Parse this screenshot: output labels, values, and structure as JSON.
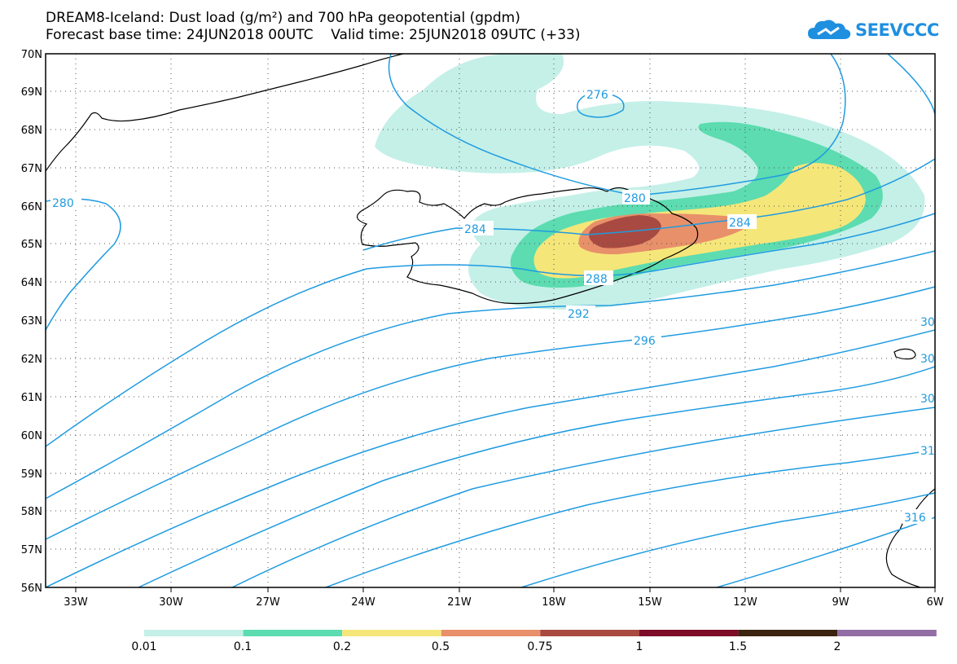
{
  "title_line1": "DREAM8-Iceland: Dust load (g/m²) and 700 hPa geopotential (gpdm)",
  "title_line2": "Forecast base time: 24JUN2018 00UTC    Valid time: 25JUN2018 09UTC (+33)",
  "logo_text": "SEEVCCC",
  "lat_labels": [
    "70N",
    "69N",
    "68N",
    "67N",
    "66N",
    "65N",
    "64N",
    "63N",
    "62N",
    "61N",
    "60N",
    "59N",
    "58N",
    "57N",
    "56N"
  ],
  "lon_labels": [
    "33W",
    "30W",
    "27W",
    "24W",
    "21W",
    "18W",
    "15W",
    "12W",
    "9W",
    "6W"
  ],
  "contour_labels": [
    "276",
    "280",
    "280",
    "284",
    "284",
    "288",
    "292",
    "296",
    "30",
    "30",
    "30",
    "31",
    "316"
  ],
  "colorbar": {
    "colors": [
      "#c4f0e8",
      "#5cdcb0",
      "#f5e67a",
      "#e8906a",
      "#a84a42",
      "#7c0c28",
      "#3c2410",
      "#926ea4"
    ],
    "ticks": [
      "0.01",
      "0.1",
      "0.2",
      "0.5",
      "0.75",
      "1",
      "1.5",
      "2"
    ]
  },
  "colors": {
    "contour": "#1f9be0",
    "coast": "#000000"
  }
}
